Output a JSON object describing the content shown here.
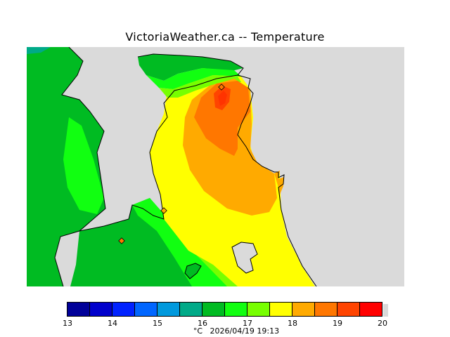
{
  "title": "VictoriaWeather.ca -- Temperature",
  "legend": {
    "ticks": [
      "13",
      "14",
      "15",
      "16",
      "17",
      "18",
      "19",
      "20"
    ],
    "colors": [
      "#000099",
      "#0000cc",
      "#0022ff",
      "#0066ff",
      "#0099dd",
      "#00aa88",
      "#00bb22",
      "#11ff11",
      "#77ff00",
      "#ffff00",
      "#ffaa00",
      "#ff7700",
      "#ff4400",
      "#ff0000"
    ],
    "unit": "°C",
    "timestamp": "2026/04/19 19:13"
  },
  "map": {
    "land_color": "#dadada",
    "stations": 3
  }
}
